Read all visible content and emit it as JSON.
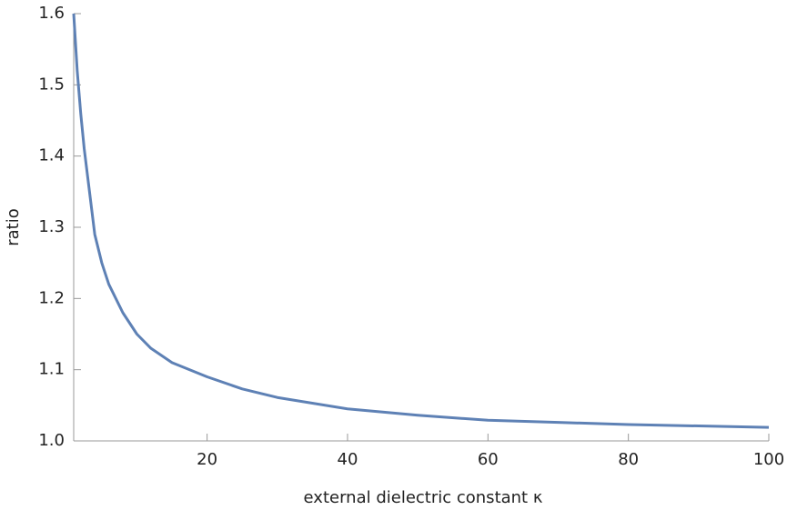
{
  "chart_data": {
    "type": "line",
    "x_label": "external dielectric constant κ",
    "y_label": "ratio",
    "series": [
      {
        "color": "#5e81b5",
        "x": [
          1,
          1.5,
          2,
          2.5,
          3,
          4,
          5,
          6,
          8,
          10,
          12,
          15,
          20,
          25,
          30,
          40,
          50,
          60,
          70,
          80,
          90,
          100
        ],
        "values": [
          1.6,
          1.52,
          1.46,
          1.41,
          1.37,
          1.29,
          1.25,
          1.22,
          1.18,
          1.15,
          1.13,
          1.11,
          1.09,
          1.073,
          1.061,
          1.045,
          1.036,
          1.029,
          1.026,
          1.023,
          1.021,
          1.019
        ]
      }
    ],
    "xlim": [
      1,
      100
    ],
    "ylim": [
      1,
      1.6
    ],
    "xticks": [
      20,
      40,
      60,
      80,
      100
    ],
    "yticks": [
      {
        "value": 1,
        "label": "1.0"
      },
      1.1,
      1.2,
      1.3,
      1.4,
      1.5,
      1.6
    ]
  }
}
